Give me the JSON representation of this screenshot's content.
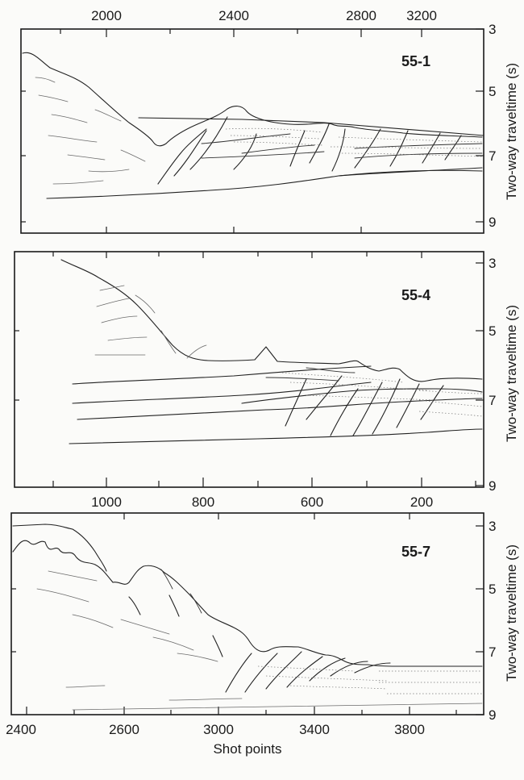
{
  "figure": {
    "x_axis_label": "Shot points",
    "y_axis_label": "Two-way traveltime (s)"
  },
  "panels": [
    {
      "id": "55-1",
      "x_ticks": [
        "2000",
        "2400",
        "2800",
        "3200"
      ],
      "x_tick_position": "top",
      "y_ticks": [
        "3",
        "5",
        "7",
        "9"
      ]
    },
    {
      "id": "55-4",
      "x_ticks": [
        "1000",
        "800",
        "600",
        "200"
      ],
      "x_tick_position": "bottom",
      "y_ticks": [
        "3",
        "5",
        "7",
        "9"
      ]
    },
    {
      "id": "55-7",
      "x_ticks": [
        "2400",
        "2600",
        "3000",
        "3400",
        "3800"
      ],
      "x_tick_position": "bottom",
      "y_ticks": [
        "3",
        "5",
        "7",
        "9"
      ]
    }
  ]
}
